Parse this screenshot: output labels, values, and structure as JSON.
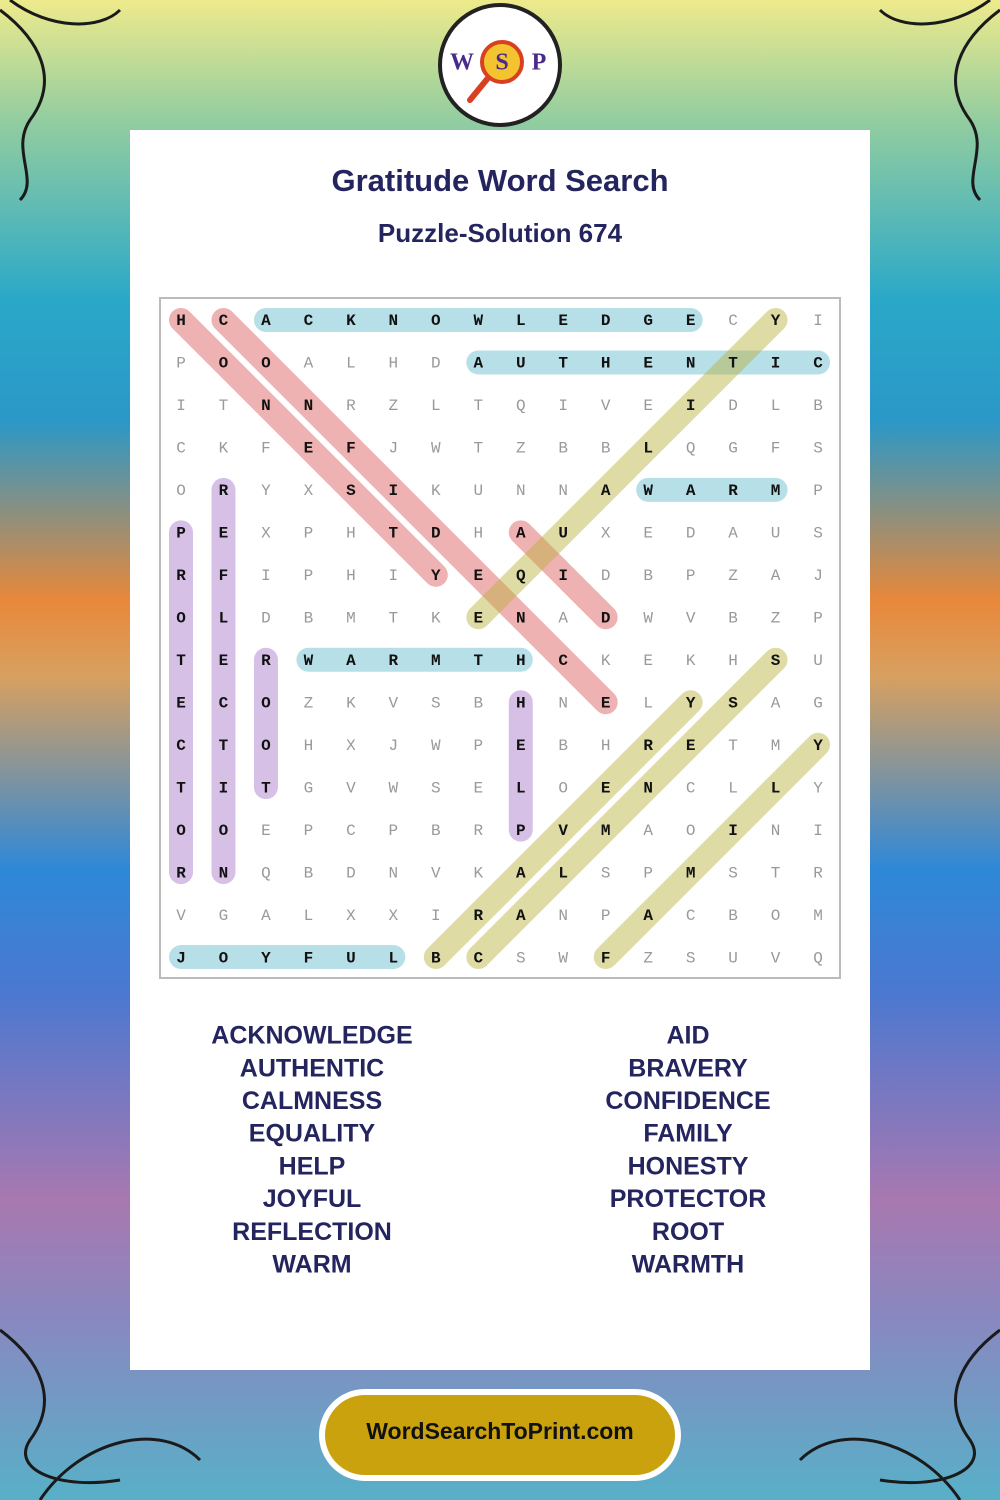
{
  "logo": {
    "letters": [
      "W",
      "S",
      "P"
    ]
  },
  "header": {
    "title": "Gratitude Word Search",
    "subtitle": "Puzzle-Solution 674"
  },
  "grid": {
    "rows": [
      [
        "H",
        "C",
        "A",
        "C",
        "K",
        "N",
        "O",
        "W",
        "L",
        "E",
        "D",
        "G",
        "E",
        "C",
        "Y",
        "I"
      ],
      [
        "P",
        "O",
        "O",
        "A",
        "L",
        "H",
        "D",
        "A",
        "U",
        "T",
        "H",
        "E",
        "N",
        "T",
        "I",
        "C"
      ],
      [
        "I",
        "T",
        "N",
        "N",
        "R",
        "Z",
        "L",
        "T",
        "Q",
        "I",
        "V",
        "E",
        "I",
        "D",
        "L",
        "B"
      ],
      [
        "C",
        "K",
        "F",
        "E",
        "F",
        "J",
        "W",
        "T",
        "Z",
        "B",
        "B",
        "L",
        "Q",
        "G",
        "F",
        "S"
      ],
      [
        "O",
        "R",
        "Y",
        "X",
        "S",
        "I",
        "K",
        "U",
        "N",
        "N",
        "A",
        "W",
        "A",
        "R",
        "M",
        "P"
      ],
      [
        "P",
        "E",
        "X",
        "P",
        "H",
        "T",
        "D",
        "H",
        "A",
        "U",
        "X",
        "E",
        "D",
        "A",
        "U",
        "S"
      ],
      [
        "R",
        "F",
        "I",
        "P",
        "H",
        "I",
        "Y",
        "E",
        "Q",
        "I",
        "D",
        "B",
        "P",
        "Z",
        "A",
        "J"
      ],
      [
        "O",
        "L",
        "D",
        "B",
        "M",
        "T",
        "K",
        "E",
        "N",
        "A",
        "D",
        "W",
        "V",
        "B",
        "Z",
        "P"
      ],
      [
        "T",
        "E",
        "R",
        "W",
        "A",
        "R",
        "M",
        "T",
        "H",
        "C",
        "K",
        "E",
        "K",
        "H",
        "S",
        "U"
      ],
      [
        "E",
        "C",
        "O",
        "Z",
        "K",
        "V",
        "S",
        "B",
        "H",
        "N",
        "E",
        "L",
        "Y",
        "S",
        "A",
        "G"
      ],
      [
        "C",
        "T",
        "O",
        "H",
        "X",
        "J",
        "W",
        "P",
        "E",
        "B",
        "H",
        "R",
        "E",
        "T",
        "M",
        "Y"
      ],
      [
        "T",
        "I",
        "T",
        "G",
        "V",
        "W",
        "S",
        "E",
        "L",
        "O",
        "E",
        "N",
        "C",
        "L",
        "L",
        "Y"
      ],
      [
        "O",
        "O",
        "E",
        "P",
        "C",
        "P",
        "B",
        "R",
        "P",
        "V",
        "M",
        "A",
        "O",
        "I",
        "N",
        "I"
      ],
      [
        "R",
        "N",
        "Q",
        "B",
        "D",
        "N",
        "V",
        "K",
        "A",
        "L",
        "S",
        "P",
        "M",
        "S",
        "T",
        "R"
      ],
      [
        "V",
        "G",
        "A",
        "L",
        "X",
        "X",
        "I",
        "R",
        "A",
        "N",
        "P",
        "A",
        "C",
        "B",
        "O",
        "M"
      ],
      [
        "J",
        "O",
        "Y",
        "F",
        "U",
        "L",
        "B",
        "C",
        "S",
        "W",
        "F",
        "Z",
        "S",
        "U",
        "V",
        "Q"
      ]
    ]
  },
  "word_list": {
    "columns": [
      [
        "ACKNOWLEDGE",
        "AUTHENTIC",
        "CALMNESS",
        "EQUALITY",
        "HELP",
        "JOYFUL",
        "REFLECTION",
        "WARM"
      ],
      [
        "AID",
        "BRAVERY",
        "CONFIDENCE",
        "FAMILY",
        "HONESTY",
        "PROTECTOR",
        "ROOT",
        "WARMTH"
      ]
    ]
  },
  "footer": {
    "site": "WordSearchToPrint.com"
  }
}
